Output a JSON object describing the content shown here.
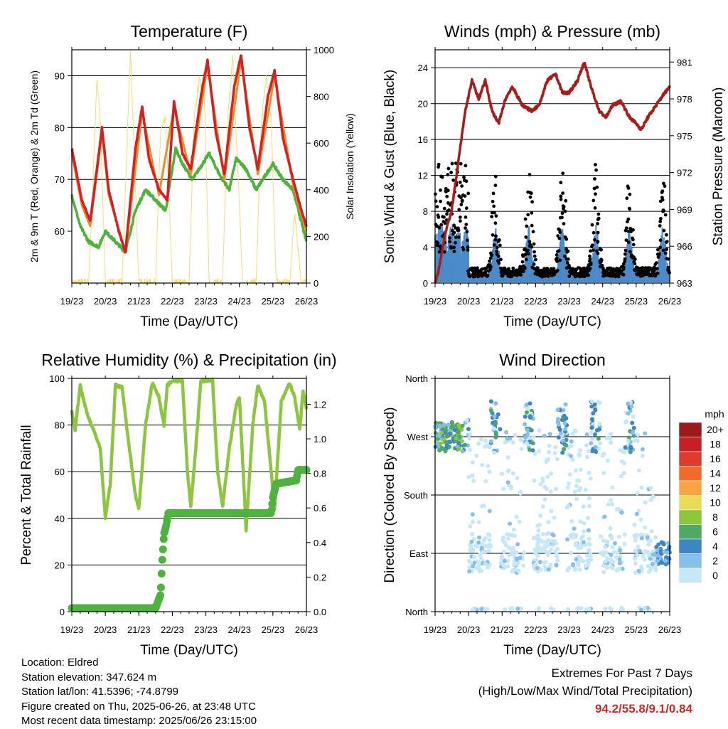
{
  "time_ticks": [
    "19/23",
    "20/23",
    "21/23",
    "22/23",
    "23/23",
    "24/23",
    "25/23",
    "26/23"
  ],
  "chart_data": [
    {
      "type": "line",
      "title": "Temperature (F)",
      "xlabel": "Time (Day/UTC)",
      "ylabel": "2m & 9m T (Red, Orange) & 2m Td (Green)",
      "y2label": "Solar Insolation (Yellow)",
      "x": [
        "19/23",
        "20/23",
        "21/23",
        "22/23",
        "23/23",
        "24/23",
        "25/23",
        "26/23"
      ],
      "ylim": [
        50,
        95
      ],
      "yticks": [
        "60",
        "70",
        "80",
        "90"
      ],
      "y2lim": [
        0,
        1000
      ],
      "y2ticks": [
        "0",
        "200",
        "400",
        "600",
        "800",
        "1000"
      ],
      "grid": true,
      "series": [
        {
          "color": "#d42020",
          "points": [
            [
              0,
              76
            ],
            [
              0.3,
              66
            ],
            [
              0.55,
              62
            ],
            [
              0.75,
              72
            ],
            [
              0.9,
              80
            ],
            [
              1.1,
              68
            ],
            [
              1.4,
              60
            ],
            [
              1.6,
              56
            ],
            [
              1.9,
              76
            ],
            [
              2.1,
              84
            ],
            [
              2.3,
              74
            ],
            [
              2.6,
              68
            ],
            [
              2.85,
              66
            ],
            [
              3.05,
              85
            ],
            [
              3.3,
              75
            ],
            [
              3.55,
              72
            ],
            [
              3.85,
              86
            ],
            [
              4.05,
              93
            ],
            [
              4.3,
              79
            ],
            [
              4.55,
              71
            ],
            [
              4.85,
              88
            ],
            [
              5.05,
              94
            ],
            [
              5.3,
              80
            ],
            [
              5.55,
              72
            ],
            [
              5.85,
              86
            ],
            [
              6.05,
              91
            ],
            [
              6.3,
              78
            ],
            [
              6.6,
              70
            ],
            [
              6.85,
              64
            ],
            [
              7,
              61
            ]
          ]
        },
        {
          "color": "#f08a24",
          "points": [
            [
              0,
              75
            ],
            [
              0.3,
              65
            ],
            [
              0.55,
              61
            ],
            [
              0.9,
              79
            ],
            [
              1.1,
              67
            ],
            [
              1.6,
              56
            ],
            [
              2.1,
              83
            ],
            [
              2.6,
              67
            ],
            [
              3.05,
              84
            ],
            [
              3.55,
              71
            ],
            [
              4.05,
              92
            ],
            [
              4.55,
              70
            ],
            [
              5.05,
              93
            ],
            [
              5.55,
              71
            ],
            [
              6.05,
              90
            ],
            [
              6.6,
              69
            ],
            [
              7,
              60
            ]
          ]
        },
        {
          "color": "#4fb23f",
          "points": [
            [
              0,
              67
            ],
            [
              0.25,
              61
            ],
            [
              0.5,
              58
            ],
            [
              0.8,
              57
            ],
            [
              1.0,
              60
            ],
            [
              1.3,
              58
            ],
            [
              1.6,
              56
            ],
            [
              1.9,
              64
            ],
            [
              2.2,
              68
            ],
            [
              2.5,
              66
            ],
            [
              2.8,
              64
            ],
            [
              3.1,
              76
            ],
            [
              3.3,
              73
            ],
            [
              3.6,
              70
            ],
            [
              3.9,
              73
            ],
            [
              4.1,
              75
            ],
            [
              4.4,
              71
            ],
            [
              4.7,
              68
            ],
            [
              4.9,
              74
            ],
            [
              5.2,
              72
            ],
            [
              5.5,
              68
            ],
            [
              5.8,
              71
            ],
            [
              6.0,
              73
            ],
            [
              6.3,
              70
            ],
            [
              6.6,
              68
            ],
            [
              6.8,
              63
            ],
            [
              7,
              58
            ]
          ]
        },
        {
          "color": "#f7dc6f",
          "axis": "y2",
          "points": [
            [
              0,
              0
            ],
            [
              0.5,
              0
            ],
            [
              0.65,
              500
            ],
            [
              0.75,
              880
            ],
            [
              0.85,
              700
            ],
            [
              1.0,
              0
            ],
            [
              1.5,
              0
            ],
            [
              1.65,
              600
            ],
            [
              1.75,
              990
            ],
            [
              1.85,
              600
            ],
            [
              2.0,
              0
            ],
            [
              2.5,
              0
            ],
            [
              2.65,
              650
            ],
            [
              2.8,
              700
            ],
            [
              3.0,
              0
            ],
            [
              3.5,
              0
            ],
            [
              3.65,
              700
            ],
            [
              3.8,
              870
            ],
            [
              3.95,
              820
            ],
            [
              4.1,
              0
            ],
            [
              4.5,
              0
            ],
            [
              4.65,
              700
            ],
            [
              4.8,
              960
            ],
            [
              4.95,
              500
            ],
            [
              5.1,
              0
            ],
            [
              5.5,
              0
            ],
            [
              5.65,
              680
            ],
            [
              5.8,
              880
            ],
            [
              5.95,
              700
            ],
            [
              6.1,
              0
            ],
            [
              6.5,
              0
            ],
            [
              6.65,
              300
            ],
            [
              6.85,
              0
            ],
            [
              7,
              0
            ]
          ]
        }
      ]
    },
    {
      "type": "scatter",
      "title": "Winds (mph) & Pressure (mb)",
      "xlabel": "Time (Day/UTC)",
      "ylabel": "Sonic Wind & Gust (Blue, Black)",
      "y2label": "Station Pressure (Maroon)",
      "x": [
        "19/23",
        "20/23",
        "21/23",
        "22/23",
        "23/23",
        "24/23",
        "25/23",
        "26/23"
      ],
      "ylim": [
        0,
        26
      ],
      "yticks": [
        "0",
        "4",
        "8",
        "12",
        "16",
        "20",
        "24"
      ],
      "y2lim": [
        963,
        982
      ],
      "y2ticks": [
        "963",
        "966",
        "969",
        "972",
        "975",
        "978",
        "981"
      ],
      "grid": true,
      "pressure": [
        [
          0,
          963
        ],
        [
          0.1,
          964
        ],
        [
          0.3,
          967
        ],
        [
          0.5,
          969
        ],
        [
          0.7,
          973
        ],
        [
          0.9,
          977
        ],
        [
          1.1,
          979.5
        ],
        [
          1.3,
          978
        ],
        [
          1.5,
          979.5
        ],
        [
          1.7,
          977
        ],
        [
          1.9,
          976
        ],
        [
          2.1,
          978
        ],
        [
          2.3,
          979
        ],
        [
          2.6,
          977.5
        ],
        [
          2.9,
          977
        ],
        [
          3.1,
          977.5
        ],
        [
          3.35,
          979.5
        ],
        [
          3.6,
          980
        ],
        [
          3.8,
          978.5
        ],
        [
          4.0,
          978.5
        ],
        [
          4.25,
          979.5
        ],
        [
          4.45,
          981
        ],
        [
          4.65,
          979
        ],
        [
          4.9,
          977
        ],
        [
          5.1,
          976.5
        ],
        [
          5.3,
          977.5
        ],
        [
          5.55,
          977.8
        ],
        [
          5.8,
          976.5
        ],
        [
          6.0,
          976
        ],
        [
          6.15,
          975.5
        ],
        [
          6.35,
          976.5
        ],
        [
          6.6,
          977.5
        ],
        [
          6.8,
          978.3
        ],
        [
          7,
          979
        ]
      ]
    },
    {
      "type": "line",
      "title": "Relative Humidity (%) & Precipitation (in)",
      "xlabel": "Time (Day/UTC)",
      "ylabel": "Percent & Total Rainfall",
      "x": [
        "19/23",
        "20/23",
        "21/23",
        "22/23",
        "23/23",
        "24/23",
        "25/23",
        "26/23"
      ],
      "ylim": [
        0,
        100
      ],
      "yticks": [
        "0",
        "20",
        "40",
        "60",
        "80",
        "100"
      ],
      "y2lim": [
        0,
        1.35
      ],
      "y2ticks": [
        "0.0",
        "0.2",
        "0.4",
        "0.6",
        "0.8",
        "1.0",
        "1.2"
      ],
      "grid": true,
      "series": [
        {
          "name": "",
          "color": "#8cc63f",
          "points": [
            [
              0,
              86
            ],
            [
              0.1,
              78
            ],
            [
              0.25,
              97
            ],
            [
              0.45,
              85
            ],
            [
              0.65,
              78
            ],
            [
              0.85,
              70
            ],
            [
              1.0,
              40
            ],
            [
              1.15,
              55
            ],
            [
              1.3,
              97
            ],
            [
              1.5,
              96
            ],
            [
              1.7,
              72
            ],
            [
              1.9,
              50
            ],
            [
              2.0,
              44
            ],
            [
              2.2,
              80
            ],
            [
              2.4,
              98
            ],
            [
              2.6,
              92
            ],
            [
              2.75,
              80
            ],
            [
              2.85,
              97
            ],
            [
              3.0,
              99
            ],
            [
              3.3,
              99
            ],
            [
              3.45,
              60
            ],
            [
              3.55,
              45
            ],
            [
              3.7,
              70
            ],
            [
              3.85,
              99
            ],
            [
              4.2,
              99
            ],
            [
              4.35,
              60
            ],
            [
              4.5,
              45
            ],
            [
              4.7,
              70
            ],
            [
              4.9,
              88
            ],
            [
              5.0,
              92
            ],
            [
              5.15,
              50
            ],
            [
              5.2,
              35
            ],
            [
              5.4,
              80
            ],
            [
              5.55,
              97
            ],
            [
              5.75,
              90
            ],
            [
              5.95,
              60
            ],
            [
              6.05,
              44
            ],
            [
              6.25,
              90
            ],
            [
              6.5,
              98
            ],
            [
              6.65,
              92
            ],
            [
              6.8,
              78
            ],
            [
              6.9,
              95
            ],
            [
              7,
              87
            ]
          ]
        },
        {
          "name": "",
          "color": "#4fb23f",
          "axis": "y2",
          "points": [
            [
              0,
              0.02
            ],
            [
              2.5,
              0.02
            ],
            [
              2.65,
              0.1
            ],
            [
              2.7,
              0.3
            ],
            [
              2.75,
              0.45
            ],
            [
              2.82,
              0.5
            ],
            [
              2.88,
              0.57
            ],
            [
              5.95,
              0.57
            ],
            [
              6.0,
              0.66
            ],
            [
              6.1,
              0.74
            ],
            [
              6.7,
              0.76
            ],
            [
              6.75,
              0.82
            ],
            [
              7,
              0.82
            ]
          ]
        }
      ]
    },
    {
      "type": "scatter",
      "title": "Wind Direction",
      "xlabel": "Time (Day/UTC)",
      "ylabel": "Direction (Colored By Speed)",
      "x": [
        "19/23",
        "20/23",
        "21/23",
        "22/23",
        "23/23",
        "24/23",
        "25/23",
        "26/23"
      ],
      "yticks": [
        "North",
        "East",
        "South",
        "West",
        "North"
      ],
      "legend": {
        "title": "mph",
        "labels": [
          "20+",
          "18",
          "16",
          "14",
          "12",
          "10",
          "8",
          "6",
          "4",
          "2",
          "0"
        ],
        "colors": [
          "#9b1b1b",
          "#c62026",
          "#e03a2c",
          "#f26a2a",
          "#f9a443",
          "#e9dc5b",
          "#8cc63f",
          "#4fa865",
          "#3d86c6",
          "#86c0e8",
          "#c5e7f8"
        ]
      }
    }
  ],
  "info": {
    "location": "Location: Eldred",
    "elevation": "Station elevation: 347.624 m",
    "latlon": "Station lat/lon: 41.5396; -74.8799",
    "created": "Figure created on Thu, 2025-06-26, at 23:48 UTC",
    "recent": "Most recent data timestamp: 2025/06/26 23:15:00"
  },
  "extremes": {
    "title": "Extremes For Past 7 Days",
    "subtitle": "(High/Low/Max Wind/Total Precipitation)",
    "values": "94.2/55.8/9.1/0.84"
  }
}
